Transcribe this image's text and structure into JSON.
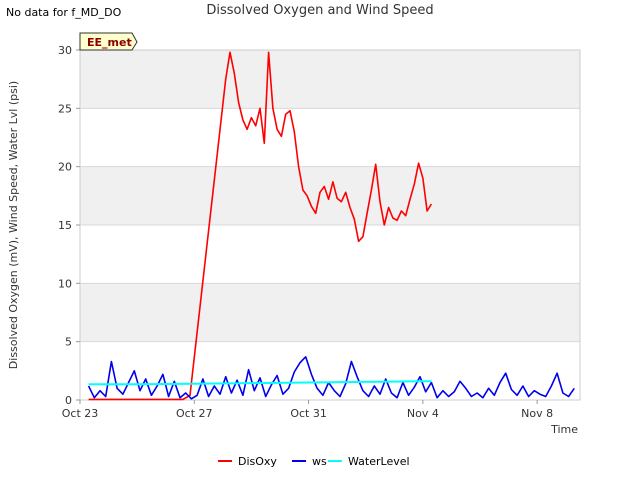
{
  "header": {
    "no_data_note": "No data for f_MD_DO",
    "title": "Dissolved Oxygen and Wind Speed"
  },
  "badge": {
    "label": "EE_met"
  },
  "chart_data": {
    "type": "line",
    "title": "Dissolved Oxygen and Wind Speed",
    "xlabel": "Time",
    "ylabel": "Dissolved Oxygen (mV), Wind Speed, Water Lvl (psi)",
    "xlim": [
      0,
      17.5
    ],
    "ylim": [
      0,
      30
    ],
    "x_ticks": [
      {
        "value": 0,
        "label": "Oct 23"
      },
      {
        "value": 4,
        "label": "Oct 27"
      },
      {
        "value": 8,
        "label": "Oct 31"
      },
      {
        "value": 12,
        "label": "Nov 4"
      },
      {
        "value": 16,
        "label": "Nov 8"
      }
    ],
    "y_ticks": [
      0,
      5,
      10,
      15,
      20,
      25,
      30
    ],
    "band_color": "#f0f0f0",
    "grid_color": "#d8d8d8",
    "series": [
      {
        "name": "DisOxy",
        "color": "#ff0000",
        "x": [
          0.3,
          3.6,
          3.85,
          5.1,
          5.25,
          5.4,
          5.55,
          5.7,
          5.85,
          6.0,
          6.15,
          6.3,
          6.45,
          6.6,
          6.75,
          6.9,
          7.05,
          7.2,
          7.35,
          7.5,
          7.65,
          7.8,
          7.95,
          8.1,
          8.25,
          8.4,
          8.55,
          8.7,
          8.85,
          9.0,
          9.15,
          9.3,
          9.45,
          9.6,
          9.75,
          9.9,
          10.05,
          10.2,
          10.35,
          10.5,
          10.65,
          10.8,
          10.95,
          11.1,
          11.25,
          11.4,
          11.55,
          11.7,
          11.85,
          12.0,
          12.15,
          12.3
        ],
        "y": [
          0.05,
          0.05,
          0.4,
          27.5,
          29.8,
          28.0,
          25.5,
          24.0,
          23.2,
          24.2,
          23.5,
          25.0,
          22.0,
          29.8,
          25.0,
          23.2,
          22.6,
          24.5,
          24.8,
          23.0,
          20.0,
          18.0,
          17.5,
          16.6,
          16.0,
          17.8,
          18.3,
          17.2,
          18.7,
          17.3,
          17.0,
          17.8,
          16.5,
          15.5,
          13.6,
          14.0,
          16.0,
          18.0,
          20.2,
          17.0,
          15.0,
          16.5,
          15.6,
          15.4,
          16.2,
          15.8,
          17.2,
          18.5,
          20.3,
          19.0,
          16.2,
          16.8
        ]
      },
      {
        "name": "ws",
        "color": "#0000ee",
        "x": [
          0.3,
          0.5,
          0.7,
          0.9,
          1.1,
          1.3,
          1.5,
          1.7,
          1.9,
          2.1,
          2.3,
          2.5,
          2.7,
          2.9,
          3.1,
          3.3,
          3.5,
          3.7,
          3.9,
          4.1,
          4.3,
          4.5,
          4.7,
          4.9,
          5.1,
          5.3,
          5.5,
          5.7,
          5.9,
          6.1,
          6.3,
          6.5,
          6.7,
          6.9,
          7.1,
          7.3,
          7.5,
          7.7,
          7.9,
          8.1,
          8.3,
          8.5,
          8.7,
          8.9,
          9.1,
          9.3,
          9.5,
          9.7,
          9.9,
          10.1,
          10.3,
          10.5,
          10.7,
          10.9,
          11.1,
          11.3,
          11.5,
          11.7,
          11.9,
          12.1,
          12.3,
          12.5,
          12.7,
          12.9,
          13.1,
          13.3,
          13.5,
          13.7,
          13.9,
          14.1,
          14.3,
          14.5,
          14.7,
          14.9,
          15.1,
          15.3,
          15.5,
          15.7,
          15.9,
          16.1,
          16.3,
          16.5,
          16.7,
          16.9,
          17.1,
          17.3
        ],
        "y": [
          1.2,
          0.2,
          0.8,
          0.3,
          3.3,
          1.0,
          0.5,
          1.5,
          2.5,
          0.8,
          1.8,
          0.4,
          1.2,
          2.2,
          0.3,
          1.6,
          0.2,
          0.6,
          0.1,
          0.4,
          1.8,
          0.3,
          1.2,
          0.5,
          2.0,
          0.6,
          1.7,
          0.4,
          2.6,
          0.8,
          1.9,
          0.3,
          1.3,
          2.1,
          0.5,
          1.0,
          2.4,
          3.2,
          3.7,
          2.2,
          1.0,
          0.4,
          1.5,
          0.8,
          0.3,
          1.4,
          3.3,
          2.0,
          0.8,
          0.3,
          1.2,
          0.5,
          1.8,
          0.6,
          0.2,
          1.5,
          0.4,
          1.1,
          2.0,
          0.7,
          1.5,
          0.2,
          0.8,
          0.3,
          0.7,
          1.6,
          1.0,
          0.3,
          0.6,
          0.2,
          1.0,
          0.4,
          1.5,
          2.3,
          0.9,
          0.4,
          1.2,
          0.3,
          0.8,
          0.5,
          0.3,
          1.2,
          2.3,
          0.6,
          0.3,
          1.0
        ]
      },
      {
        "name": "WaterLevel",
        "color": "#00ffff",
        "x": [
          0.3,
          2.0,
          4.0,
          6.0,
          8.0,
          10.0,
          12.0,
          12.3
        ],
        "y": [
          1.35,
          1.35,
          1.4,
          1.45,
          1.5,
          1.55,
          1.6,
          1.6
        ]
      }
    ],
    "legend_position": "bottom-center"
  }
}
